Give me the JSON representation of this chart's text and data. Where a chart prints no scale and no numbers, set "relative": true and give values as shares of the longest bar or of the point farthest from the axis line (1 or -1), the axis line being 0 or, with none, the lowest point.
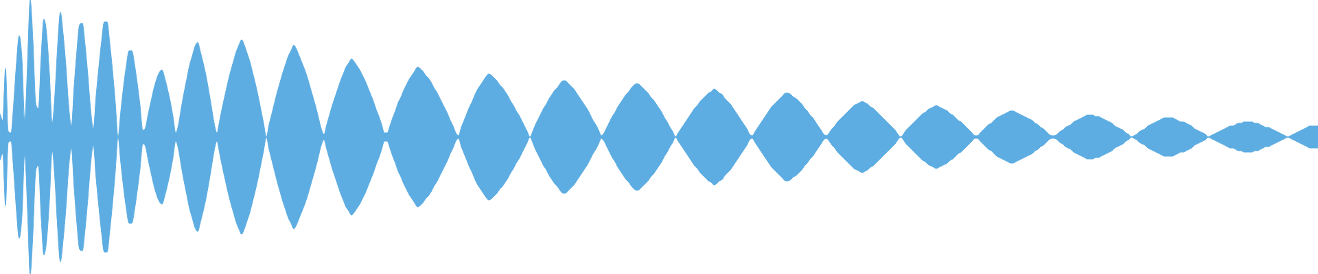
{
  "chart_data": {
    "type": "area",
    "relative": true,
    "ref_lines": [
      {
        "axis": "y",
        "value": 0,
        "color": "#5dade2"
      }
    ],
    "categories": [
      null,
      null,
      null,
      null,
      null,
      null,
      null,
      null,
      null,
      null,
      null,
      null,
      null,
      null,
      null,
      null,
      null,
      null,
      null,
      null,
      null,
      null,
      null,
      null,
      null,
      null,
      null,
      null,
      null,
      null,
      null,
      null,
      null,
      null,
      null,
      null,
      null,
      null,
      null,
      null,
      null,
      null,
      null,
      null,
      null,
      null,
      null,
      null,
      null,
      null,
      null,
      null,
      null,
      null,
      null,
      null,
      null,
      null,
      null,
      null,
      null,
      null,
      null,
      null,
      null,
      null,
      null,
      null,
      null,
      null,
      null,
      null,
      null,
      null,
      null,
      null,
      null,
      null,
      null,
      null,
      null,
      null,
      null,
      null,
      null,
      null,
      null,
      null,
      null,
      null,
      null,
      null,
      null,
      null,
      null,
      null,
      null,
      null,
      null,
      null,
      null,
      null,
      null,
      null,
      null,
      null,
      null,
      null,
      null,
      null,
      null,
      null,
      null,
      null,
      null,
      null,
      null,
      null,
      null,
      null,
      null,
      null,
      null,
      null,
      null,
      null,
      null,
      null,
      null,
      null,
      null,
      null,
      null,
      null,
      null,
      null,
      null,
      null,
      null,
      null,
      null,
      null,
      null,
      null,
      null,
      null,
      null,
      null,
      null,
      null,
      null,
      null,
      null,
      null,
      null,
      null,
      null,
      null,
      null,
      null,
      null,
      null,
      null,
      null,
      null,
      null,
      null,
      null,
      null,
      null,
      null,
      null,
      null,
      null,
      null,
      null,
      null,
      null,
      null,
      null,
      null,
      null,
      null,
      null,
      null,
      null,
      null,
      null,
      null,
      null,
      null,
      null,
      null,
      null,
      null,
      null,
      null,
      null,
      null,
      null,
      null,
      null,
      null,
      null,
      null,
      null,
      null,
      null,
      null,
      null,
      null,
      null,
      null,
      null,
      null,
      null,
      null,
      null,
      null,
      null,
      null,
      null,
      null,
      null,
      null,
      null,
      null,
      null,
      null,
      null,
      null,
      null,
      null,
      null,
      null,
      null,
      null,
      null,
      null,
      null,
      null,
      null,
      null,
      null,
      null,
      null,
      null,
      null,
      null,
      null,
      null,
      null,
      null,
      null,
      null,
      null,
      null,
      null,
      null,
      null,
      null,
      null,
      null,
      null,
      null,
      null,
      null,
      null,
      null,
      null,
      null,
      null,
      null,
      null,
      null,
      null,
      null,
      null,
      null,
      null,
      null,
      null,
      null,
      null,
      null,
      null,
      null,
      null,
      null,
      null,
      null,
      null,
      null,
      null,
      null,
      null,
      null,
      null,
      null,
      null,
      null,
      null,
      null,
      null,
      null,
      null,
      null,
      null,
      null,
      null,
      null,
      null,
      null,
      null,
      null,
      null,
      null,
      null,
      null,
      null,
      null,
      null,
      null,
      null,
      null,
      null,
      null,
      null,
      null,
      null,
      null,
      null,
      null,
      null,
      null,
      null,
      null,
      null,
      null,
      null,
      null,
      null,
      null,
      null,
      null,
      null,
      null,
      null,
      null,
      null,
      null,
      null,
      null,
      null,
      null,
      null,
      null,
      null,
      null,
      null,
      null,
      null,
      null,
      null,
      null,
      null,
      null,
      null,
      null,
      null,
      null,
      null,
      null,
      null,
      null,
      null,
      null,
      null,
      null,
      null,
      null,
      null,
      null,
      null,
      null,
      null,
      null,
      null,
      null,
      null,
      null,
      null,
      null,
      null,
      null,
      null,
      null,
      null,
      null,
      null,
      null,
      null,
      null,
      null,
      null,
      null,
      null,
      null,
      null,
      null,
      null,
      null,
      null,
      null,
      null,
      null,
      null,
      null,
      null,
      null,
      null,
      null,
      null,
      null,
      null,
      null,
      null,
      null,
      null,
      null,
      null,
      null,
      null,
      null,
      null,
      null,
      null,
      null,
      null,
      null,
      null,
      null,
      null,
      null,
      null,
      null,
      null,
      null,
      null,
      null,
      null,
      null,
      null,
      null,
      null,
      null,
      null,
      null,
      null,
      null,
      null,
      null,
      null,
      null,
      null,
      null,
      null,
      null,
      null,
      null,
      null,
      null,
      null,
      null,
      null,
      null,
      null,
      null,
      null,
      null,
      null
    ],
    "series": [
      {
        "color": "#5dade2",
        "values": [
          0.17,
          0.12,
          0.5,
          0.04,
          0.03,
          0.25,
          0.54,
          0.74,
          0.57,
          0.12,
          0.52,
          1,
          0.7,
          0.25,
          0.21,
          0.59,
          0.86,
          0.75,
          0.46,
          0.1,
          0.31,
          0.67,
          0.91,
          0.75,
          0.52,
          0.23,
          0.08,
          0.37,
          0.63,
          0.82,
          0.83,
          0.67,
          0.45,
          0.2,
          0.06,
          0.3,
          0.51,
          0.7,
          0.84,
          0.84,
          0.68,
          0.48,
          0.25,
          0,
          0.19,
          0.37,
          0.52,
          0.63,
          0.63,
          0.53,
          0.39,
          0.23,
          0.05,
          0.07,
          0.17,
          0.26,
          0.35,
          0.42,
          0.47,
          0.49,
          0.43,
          0.35,
          0.26,
          0.15,
          0.03,
          0.09,
          0.21,
          0.32,
          0.42,
          0.52,
          0.59,
          0.66,
          0.69,
          0.62,
          0.54,
          0.45,
          0.34,
          0.22,
          0.1,
          0.03,
          0.12,
          0.22,
          0.31,
          0.4,
          0.48,
          0.55,
          0.62,
          0.67,
          0.71,
          0.67,
          0.61,
          0.55,
          0.47,
          0.39,
          0.3,
          0.2,
          0.1,
          0,
          0.09,
          0.17,
          0.25,
          0.33,
          0.4,
          0.47,
          0.53,
          0.59,
          0.63,
          0.67,
          0.64,
          0.59,
          0.54,
          0.49,
          0.43,
          0.36,
          0.29,
          0.22,
          0.14,
          0.06,
          0.02,
          0.09,
          0.16,
          0.23,
          0.29,
          0.35,
          0.41,
          0.46,
          0.51,
          0.54,
          0.57,
          0.55,
          0.52,
          0.49,
          0.45,
          0.41,
          0.36,
          0.31,
          0.26,
          0.2,
          0.15,
          0.09,
          0.03,
          0.03,
          0.08,
          0.14,
          0.19,
          0.25,
          0.29,
          0.34,
          0.38,
          0.42,
          0.45,
          0.48,
          0.51,
          0.5,
          0.48,
          0.45,
          0.43,
          0.4,
          0.36,
          0.33,
          0.29,
          0.25,
          0.21,
          0.17,
          0.12,
          0.08,
          0.03,
          0.01,
          0.07,
          0.12,
          0.17,
          0.22,
          0.26,
          0.31,
          0.35,
          0.38,
          0.41,
          0.44,
          0.46,
          0.45,
          0.43,
          0.41,
          0.38,
          0.36,
          0.33,
          0.3,
          0.26,
          0.23,
          0.19,
          0.16,
          0.12,
          0.08,
          0.04,
          0,
          0.04,
          0.09,
          0.13,
          0.17,
          0.21,
          0.24,
          0.28,
          0.31,
          0.34,
          0.36,
          0.39,
          0.41,
          0.41,
          0.39,
          0.37,
          0.35,
          0.32,
          0.29,
          0.26,
          0.23,
          0.2,
          0.16,
          0.12,
          0.09,
          0.05,
          0.01,
          0.03,
          0.07,
          0.11,
          0.15,
          0.18,
          0.22,
          0.25,
          0.28,
          0.31,
          0.33,
          0.36,
          0.38,
          0.39,
          0.38,
          0.36,
          0.34,
          0.32,
          0.29,
          0.27,
          0.24,
          0.21,
          0.18,
          0.14,
          0.11,
          0.07,
          0.04,
          0,
          0.03,
          0.06,
          0.09,
          0.12,
          0.15,
          0.18,
          0.21,
          0.23,
          0.26,
          0.28,
          0.3,
          0.32,
          0.33,
          0.35,
          0.34,
          0.32,
          0.31,
          0.28,
          0.26,
          0.24,
          0.21,
          0.18,
          0.15,
          0.12,
          0.09,
          0.06,
          0.02,
          0.01,
          0.04,
          0.07,
          0.1,
          0.13,
          0.16,
          0.19,
          0.22,
          0.24,
          0.26,
          0.28,
          0.3,
          0.32,
          0.32,
          0.31,
          0.29,
          0.28,
          0.26,
          0.24,
          0.21,
          0.19,
          0.16,
          0.14,
          0.11,
          0.08,
          0.05,
          0.02,
          0.01,
          0.03,
          0.06,
          0.08,
          0.11,
          0.13,
          0.15,
          0.17,
          0.19,
          0.21,
          0.23,
          0.24,
          0.25,
          0.26,
          0.25,
          0.24,
          0.22,
          0.21,
          0.19,
          0.17,
          0.15,
          0.13,
          0.11,
          0.09,
          0.07,
          0.05,
          0.02,
          0,
          0.02,
          0.05,
          0.07,
          0.09,
          0.11,
          0.13,
          0.15,
          0.17,
          0.18,
          0.2,
          0.21,
          0.22,
          0.23,
          0.22,
          0.21,
          0.2,
          0.19,
          0.17,
          0.16,
          0.14,
          0.12,
          0.11,
          0.09,
          0.07,
          0.05,
          0.03,
          0.01,
          0.01,
          0.03,
          0.05,
          0.07,
          0.09,
          0.1,
          0.12,
          0.14,
          0.15,
          0.16,
          0.17,
          0.18,
          0.19,
          0.19,
          0.18,
          0.17,
          0.16,
          0.15,
          0.14,
          0.13,
          0.12,
          0.1,
          0.09,
          0.07,
          0.06,
          0.04,
          0.02,
          0.01,
          0.01,
          0.02,
          0.04,
          0.05,
          0.07,
          0.08,
          0.09,
          0.11,
          0.12,
          0.13,
          0.14,
          0.15,
          0.16,
          0.16,
          0.16,
          0.15,
          0.15,
          0.14,
          0.13,
          0.12,
          0.11,
          0.1,
          0.08,
          0.07,
          0.06,
          0.05,
          0.03,
          0.02,
          0,
          0.01,
          0.02,
          0.04,
          0.05,
          0.06,
          0.08,
          0.09,
          0.1,
          0.11,
          0.12,
          0.13,
          0.14,
          0.14,
          0.14,
          0.14,
          0.13,
          0.12,
          0.11,
          0.11,
          0.1,
          0.09,
          0.08,
          0.06,
          0.05,
          0.04,
          0.03,
          0.02,
          0,
          0.01,
          0.02,
          0.03,
          0.04,
          0.05,
          0.06,
          0.07,
          0.08,
          0.08,
          0.09,
          0.1,
          0.1,
          0.11,
          0.11,
          0.11,
          0.11,
          0.1,
          0.1,
          0.09,
          0.08,
          0.07,
          0.07,
          0.06,
          0.05,
          0.04,
          0.03,
          0.02,
          0.01,
          0,
          0.01,
          0.02,
          0.03,
          0.04,
          0.05,
          0.06,
          0.07,
          0.08,
          0.08,
          0.08,
          0.08
        ]
      },
      {
        "color": "#5dade2",
        "values": [
          -0.17,
          -0.12,
          -0.5,
          -0.04,
          -0.03,
          -0.25,
          -0.54,
          -0.74,
          -0.57,
          -0.12,
          -0.52,
          -1,
          -0.7,
          -0.25,
          -0.21,
          -0.59,
          -0.86,
          -0.75,
          -0.46,
          -0.1,
          -0.31,
          -0.67,
          -0.91,
          -0.75,
          -0.52,
          -0.23,
          -0.08,
          -0.37,
          -0.63,
          -0.82,
          -0.83,
          -0.67,
          -0.45,
          -0.2,
          -0.06,
          -0.3,
          -0.51,
          -0.7,
          -0.84,
          -0.84,
          -0.68,
          -0.48,
          -0.25,
          0,
          -0.19,
          -0.37,
          -0.52,
          -0.63,
          -0.63,
          -0.53,
          -0.39,
          -0.23,
          -0.05,
          -0.07,
          -0.17,
          -0.26,
          -0.35,
          -0.42,
          -0.47,
          -0.49,
          -0.43,
          -0.35,
          -0.26,
          -0.15,
          -0.03,
          -0.09,
          -0.21,
          -0.32,
          -0.42,
          -0.52,
          -0.59,
          -0.66,
          -0.69,
          -0.62,
          -0.54,
          -0.45,
          -0.34,
          -0.22,
          -0.1,
          -0.03,
          -0.12,
          -0.22,
          -0.31,
          -0.4,
          -0.48,
          -0.55,
          -0.62,
          -0.67,
          -0.71,
          -0.67,
          -0.61,
          -0.55,
          -0.47,
          -0.39,
          -0.3,
          -0.2,
          -0.1,
          0,
          -0.09,
          -0.17,
          -0.25,
          -0.33,
          -0.4,
          -0.47,
          -0.53,
          -0.59,
          -0.63,
          -0.67,
          -0.64,
          -0.59,
          -0.54,
          -0.49,
          -0.43,
          -0.36,
          -0.29,
          -0.22,
          -0.14,
          -0.06,
          -0.02,
          -0.09,
          -0.16,
          -0.23,
          -0.29,
          -0.35,
          -0.41,
          -0.46,
          -0.51,
          -0.54,
          -0.57,
          -0.55,
          -0.52,
          -0.49,
          -0.45,
          -0.41,
          -0.36,
          -0.31,
          -0.26,
          -0.2,
          -0.15,
          -0.09,
          -0.03,
          -0.03,
          -0.08,
          -0.14,
          -0.19,
          -0.25,
          -0.29,
          -0.34,
          -0.38,
          -0.42,
          -0.45,
          -0.48,
          -0.51,
          -0.5,
          -0.48,
          -0.45,
          -0.43,
          -0.4,
          -0.36,
          -0.33,
          -0.29,
          -0.25,
          -0.21,
          -0.17,
          -0.12,
          -0.08,
          -0.03,
          -0.01,
          -0.07,
          -0.12,
          -0.17,
          -0.22,
          -0.26,
          -0.31,
          -0.35,
          -0.38,
          -0.41,
          -0.44,
          -0.46,
          -0.45,
          -0.43,
          -0.41,
          -0.38,
          -0.36,
          -0.33,
          -0.3,
          -0.26,
          -0.23,
          -0.19,
          -0.16,
          -0.12,
          -0.08,
          -0.04,
          0,
          -0.04,
          -0.09,
          -0.13,
          -0.17,
          -0.21,
          -0.24,
          -0.28,
          -0.31,
          -0.34,
          -0.36,
          -0.39,
          -0.41,
          -0.41,
          -0.39,
          -0.37,
          -0.35,
          -0.32,
          -0.29,
          -0.26,
          -0.23,
          -0.2,
          -0.16,
          -0.12,
          -0.09,
          -0.05,
          -0.01,
          -0.03,
          -0.07,
          -0.11,
          -0.15,
          -0.18,
          -0.22,
          -0.25,
          -0.28,
          -0.31,
          -0.33,
          -0.36,
          -0.38,
          -0.39,
          -0.38,
          -0.36,
          -0.34,
          -0.32,
          -0.29,
          -0.27,
          -0.24,
          -0.21,
          -0.18,
          -0.14,
          -0.11,
          -0.07,
          -0.04,
          0,
          -0.03,
          -0.06,
          -0.09,
          -0.12,
          -0.15,
          -0.18,
          -0.21,
          -0.23,
          -0.26,
          -0.28,
          -0.3,
          -0.32,
          -0.33,
          -0.35,
          -0.34,
          -0.32,
          -0.31,
          -0.28,
          -0.26,
          -0.24,
          -0.21,
          -0.18,
          -0.15,
          -0.12,
          -0.09,
          -0.06,
          -0.02,
          -0.01,
          -0.04,
          -0.07,
          -0.1,
          -0.13,
          -0.16,
          -0.19,
          -0.22,
          -0.24,
          -0.26,
          -0.28,
          -0.3,
          -0.32,
          -0.32,
          -0.31,
          -0.29,
          -0.28,
          -0.26,
          -0.24,
          -0.21,
          -0.19,
          -0.16,
          -0.14,
          -0.11,
          -0.08,
          -0.05,
          -0.02,
          -0.01,
          -0.03,
          -0.06,
          -0.08,
          -0.11,
          -0.13,
          -0.15,
          -0.17,
          -0.19,
          -0.21,
          -0.23,
          -0.24,
          -0.25,
          -0.26,
          -0.25,
          -0.24,
          -0.22,
          -0.21,
          -0.19,
          -0.17,
          -0.15,
          -0.13,
          -0.11,
          -0.09,
          -0.07,
          -0.05,
          -0.02,
          0,
          -0.02,
          -0.05,
          -0.07,
          -0.09,
          -0.11,
          -0.13,
          -0.15,
          -0.17,
          -0.18,
          -0.2,
          -0.21,
          -0.22,
          -0.23,
          -0.22,
          -0.21,
          -0.2,
          -0.19,
          -0.17,
          -0.16,
          -0.14,
          -0.12,
          -0.11,
          -0.09,
          -0.07,
          -0.05,
          -0.03,
          -0.01,
          -0.01,
          -0.03,
          -0.05,
          -0.07,
          -0.09,
          -0.1,
          -0.12,
          -0.14,
          -0.15,
          -0.16,
          -0.17,
          -0.18,
          -0.19,
          -0.19,
          -0.18,
          -0.17,
          -0.16,
          -0.15,
          -0.14,
          -0.13,
          -0.12,
          -0.1,
          -0.09,
          -0.07,
          -0.06,
          -0.04,
          -0.02,
          -0.01,
          -0.01,
          -0.02,
          -0.04,
          -0.05,
          -0.07,
          -0.08,
          -0.09,
          -0.11,
          -0.12,
          -0.13,
          -0.14,
          -0.15,
          -0.16,
          -0.16,
          -0.16,
          -0.15,
          -0.15,
          -0.14,
          -0.13,
          -0.12,
          -0.11,
          -0.1,
          -0.08,
          -0.07,
          -0.06,
          -0.05,
          -0.03,
          -0.02,
          0,
          -0.01,
          -0.02,
          -0.04,
          -0.05,
          -0.06,
          -0.08,
          -0.09,
          -0.1,
          -0.11,
          -0.12,
          -0.13,
          -0.14,
          -0.14,
          -0.14,
          -0.14,
          -0.13,
          -0.12,
          -0.11,
          -0.11,
          -0.1,
          -0.09,
          -0.08,
          -0.06,
          -0.05,
          -0.04,
          -0.03,
          -0.02,
          0,
          -0.01,
          -0.02,
          -0.03,
          -0.04,
          -0.05,
          -0.06,
          -0.07,
          -0.08,
          -0.08,
          -0.09,
          -0.1,
          -0.1,
          -0.11,
          -0.11,
          -0.11,
          -0.11,
          -0.1,
          -0.1,
          -0.09,
          -0.08,
          -0.07,
          -0.07,
          -0.06,
          -0.05,
          -0.04,
          -0.03,
          -0.02,
          -0.01,
          0,
          -0.01,
          -0.02,
          -0.03,
          -0.04,
          -0.05,
          -0.06,
          -0.07,
          -0.08,
          -0.08,
          -0.08,
          -0.08
        ]
      }
    ]
  }
}
